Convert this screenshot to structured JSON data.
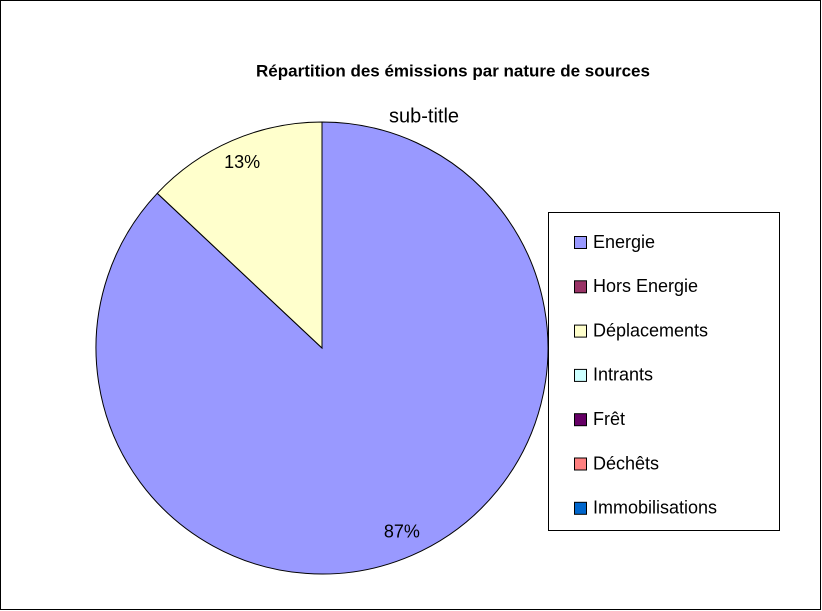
{
  "chart_data": {
    "type": "pie",
    "title": "Répartition des émissions par nature de sources",
    "subtitle": "sub-title",
    "categories": [
      "Energie",
      "Hors Energie",
      "Déplacements",
      "Intrants",
      "Frêt",
      "Déchêts",
      "Immobilisations"
    ],
    "values": [
      87,
      0,
      13,
      0,
      0,
      0,
      0
    ],
    "value_labels": [
      "87%",
      null,
      "13%",
      null,
      null,
      null,
      null
    ],
    "colors": [
      "#9999ff",
      "#993366",
      "#ffffcc",
      "#ccffff",
      "#660066",
      "#ff8080",
      "#0066cc"
    ],
    "legend": "right"
  }
}
